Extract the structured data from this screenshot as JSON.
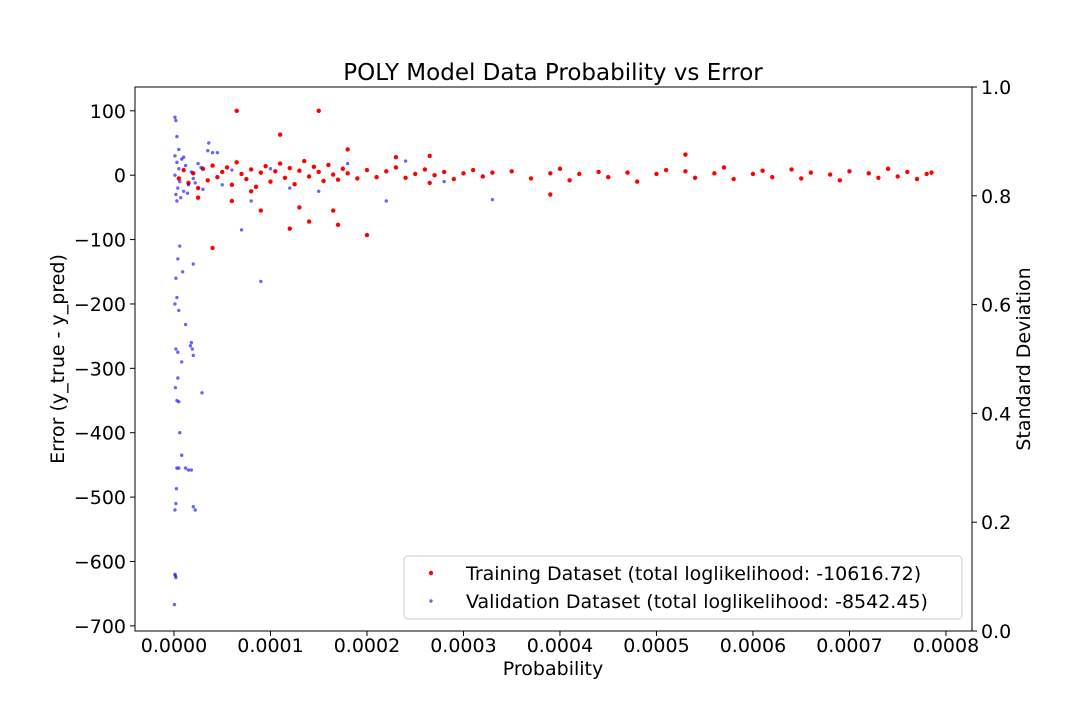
{
  "chart_data": {
    "type": "scatter",
    "title": "POLY Model Data Probability vs Error",
    "x_label": "Probability",
    "y_label": "Error (y_true - y_pred)",
    "y2_label": "Standard Deviation",
    "xlim": [
      -4.04e-05,
      0.000827
    ],
    "ylim": [
      -708,
      137
    ],
    "y2lim": [
      0,
      1
    ],
    "xticks": [
      {
        "value": 0,
        "label": "0.0000"
      },
      {
        "value": 0.0001,
        "label": "0.0001"
      },
      {
        "value": 0.0002,
        "label": "0.0002"
      },
      {
        "value": 0.0003,
        "label": "0.0003"
      },
      {
        "value": 0.0004,
        "label": "0.0004"
      },
      {
        "value": 0.0005,
        "label": "0.0005"
      },
      {
        "value": 0.0006,
        "label": "0.0006"
      },
      {
        "value": 0.0007,
        "label": "0.0007"
      },
      {
        "value": 0.0008,
        "label": "0.0008"
      }
    ],
    "yticks": [
      {
        "value": -700,
        "label": "−700"
      },
      {
        "value": -600,
        "label": "−600"
      },
      {
        "value": -500,
        "label": "−500"
      },
      {
        "value": -400,
        "label": "−400"
      },
      {
        "value": -300,
        "label": "−300"
      },
      {
        "value": -200,
        "label": "−200"
      },
      {
        "value": -100,
        "label": "−100"
      },
      0,
      100
    ],
    "y2ticks": [
      {
        "value": 0,
        "label": "0.0"
      },
      {
        "value": 0.2,
        "label": "0.2"
      },
      {
        "value": 0.4,
        "label": "0.4"
      },
      {
        "value": 0.6,
        "label": "0.6"
      },
      {
        "value": 0.8,
        "label": "0.8"
      },
      {
        "value": 1,
        "label": "1.0"
      }
    ],
    "legend": "lower right",
    "series": [
      {
        "name": "Training Dataset (total loglikelihood: -10616.72)",
        "color": "#ff0000",
        "x": [
          5e-06,
          1e-05,
          1.5e-05,
          2e-05,
          2.5e-05,
          3e-05,
          3.5e-05,
          4e-05,
          4.5e-05,
          5e-05,
          5.5e-05,
          6e-05,
          6.5e-05,
          7e-05,
          7.5e-05,
          8e-05,
          8.5e-05,
          9e-05,
          9.5e-05,
          0.0001,
          0.000105,
          0.00011,
          0.000115,
          0.00012,
          0.000125,
          0.00013,
          0.000135,
          0.00014,
          0.000145,
          0.00015,
          0.000155,
          0.00016,
          0.000165,
          0.00017,
          0.000175,
          0.00018,
          0.00019,
          0.0002,
          0.00021,
          0.00022,
          0.00023,
          0.00024,
          0.00025,
          0.00026,
          0.000265,
          0.00027,
          0.00028,
          0.00029,
          0.0003,
          0.00031,
          0.00032,
          0.00033,
          0.00035,
          0.00037,
          0.00039,
          0.0004,
          0.00041,
          0.00042,
          0.00044,
          0.00045,
          0.00047,
          0.00048,
          0.0005,
          0.00051,
          0.00053,
          0.00054,
          0.00056,
          0.00057,
          0.00058,
          0.0006,
          0.00061,
          0.00062,
          0.00064,
          0.00065,
          0.00066,
          0.00068,
          0.00069,
          0.0007,
          0.00072,
          0.00073,
          0.00074,
          0.00075,
          0.00076,
          0.00077,
          0.00078,
          0.000785,
          6.5e-05,
          0.00015,
          0.00011,
          4e-05,
          0.0002,
          0.00012,
          0.00017,
          0.00014,
          9e-05,
          0.00013,
          0.000165,
          0.00039,
          0.00053,
          0.000265,
          8e-05,
          6e-05,
          2.5e-05,
          0.00018,
          0.00023
        ],
        "values": [
          -5,
          8,
          -12,
          3,
          -20,
          10,
          -8,
          15,
          -3,
          5,
          12,
          -15,
          20,
          2,
          -6,
          9,
          -18,
          4,
          14,
          -10,
          6,
          18,
          -4,
          11,
          -14,
          7,
          22,
          -2,
          13,
          5,
          -9,
          16,
          1,
          -7,
          10,
          3,
          -5,
          8,
          -3,
          6,
          12,
          -4,
          2,
          9,
          -12,
          0,
          5,
          -6,
          3,
          8,
          -2,
          4,
          6,
          -5,
          3,
          10,
          -8,
          2,
          5,
          -3,
          4,
          -10,
          2,
          8,
          6,
          -4,
          3,
          12,
          -6,
          2,
          7,
          -3,
          9,
          -5,
          4,
          1,
          -8,
          6,
          3,
          -4,
          10,
          -2,
          5,
          -6,
          2,
          4,
          100,
          100,
          63,
          -113,
          -93,
          -83,
          -77,
          -72,
          -55,
          -50,
          -55,
          -30,
          32,
          30,
          -25,
          -40,
          -35,
          40,
          28
        ]
      },
      {
        "name": "Validation Dataset (total loglikelihood: -8542.45)",
        "color": "#0000ff",
        "x": [
          5e-07,
          1e-06,
          2e-06,
          1.5e-06,
          1e-06,
          2e-06,
          2.5e-06,
          3e-06,
          5e-06,
          1.2e-05,
          1.5e-05,
          1.8e-05,
          2e-05,
          2.2e-05,
          3e-06,
          5e-06,
          1.5e-06,
          4e-06,
          6e-06,
          8e-06,
          2e-06,
          4e-06,
          8e-06,
          1.2e-05,
          1.8e-05,
          2e-05,
          1.9e-05,
          1.7e-05,
          2.9e-05,
          1e-06,
          3e-06,
          5e-06,
          2e-06,
          4e-06,
          6e-06,
          9e-06,
          2e-05,
          9e-05,
          1e-06,
          2e-06,
          3e-06,
          3.6e-05,
          4e-05,
          4.5e-05,
          1e-06,
          2e-06,
          3e-06,
          4e-06,
          5e-06,
          6e-06,
          8e-06,
          1e-05,
          1.2e-05,
          1.5e-05,
          1.8e-05,
          2e-05,
          2.5e-05,
          3e-05,
          3.5e-05,
          1e-06,
          3e-06,
          5e-06,
          7e-06,
          1e-05,
          1.4e-05,
          2.2e-05,
          2.8e-05,
          5e-05,
          6e-05,
          7e-05,
          8e-05,
          0.0001,
          0.00012,
          0.00015,
          0.00018,
          0.00022,
          0.00024,
          0.00028,
          0.00033
        ],
        "values": [
          -667,
          -620,
          -625,
          -622,
          -520,
          -510,
          -487,
          -455,
          -455,
          -455,
          -458,
          -458,
          -515,
          -520,
          -350,
          -352,
          -330,
          -315,
          -400,
          -435,
          -270,
          -275,
          -290,
          -232,
          -260,
          -280,
          -270,
          -265,
          -338,
          -200,
          -190,
          -210,
          -160,
          -130,
          -110,
          -150,
          -138,
          -165,
          90,
          85,
          60,
          50,
          35,
          35,
          30,
          -30,
          20,
          -20,
          10,
          -10,
          25,
          -25,
          15,
          -15,
          5,
          -5,
          18,
          -22,
          38,
          0,
          -40,
          40,
          -35,
          28,
          -28,
          -12,
          12,
          -15,
          8,
          -85,
          -40,
          10,
          -20,
          -25,
          18,
          -40,
          22,
          -10,
          -38
        ]
      }
    ]
  }
}
